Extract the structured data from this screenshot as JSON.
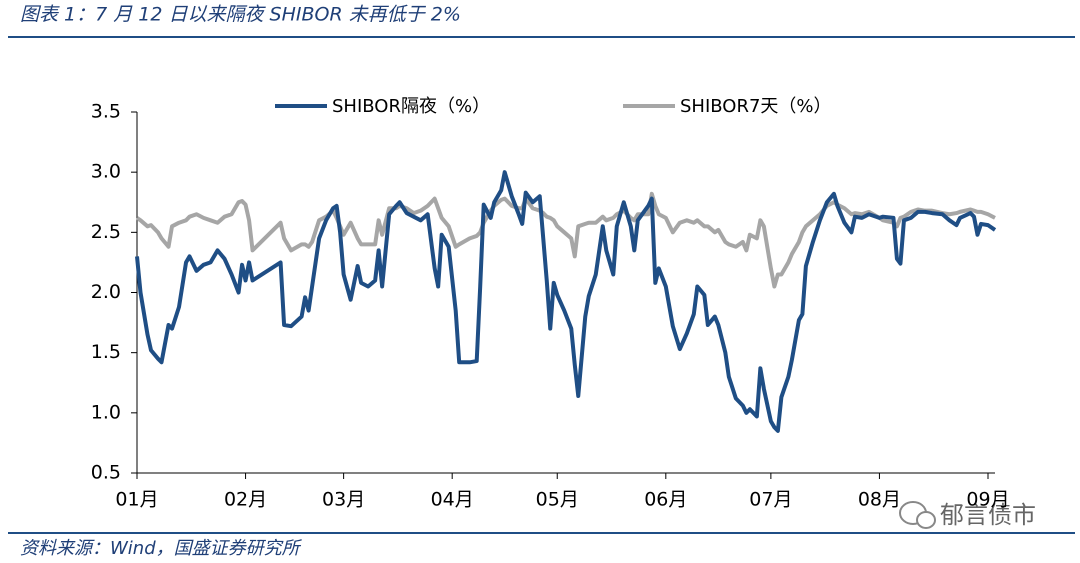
{
  "chart_data": {
    "type": "line",
    "title": "图表 1：7 月 12 日以来隔夜 SHIBOR 未再低于 2%",
    "source": "资料来源：Wind，国盛证券研究所",
    "watermark": "郁言债市",
    "x": [
      0,
      1,
      3,
      4,
      6,
      7,
      9,
      10,
      12,
      14,
      15,
      17,
      19,
      21,
      23,
      25,
      27,
      29,
      30,
      31,
      32,
      33,
      41,
      42,
      44,
      47,
      48,
      49,
      50,
      52,
      54,
      56,
      57,
      58,
      59,
      61,
      63,
      64,
      66,
      68,
      69,
      70,
      72,
      74,
      75,
      77,
      79,
      81,
      83,
      85,
      86,
      87,
      89,
      91,
      92,
      95,
      97,
      98,
      99,
      101,
      102,
      104,
      105,
      107,
      109,
      110,
      111,
      113,
      115,
      116,
      117,
      118,
      119,
      120,
      122,
      124,
      125,
      126,
      128,
      129,
      131,
      133,
      134,
      136,
      137,
      139,
      141,
      142,
      143,
      146,
      147,
      148,
      149,
      151,
      153,
      155,
      157,
      159,
      160,
      162,
      163,
      165,
      166,
      168,
      169,
      171,
      173,
      174,
      175,
      177,
      178,
      179,
      181,
      182,
      183,
      184,
      186,
      187,
      189,
      190,
      191,
      193,
      195,
      197,
      199,
      200,
      202,
      204,
      205,
      207,
      209,
      212,
      213,
      216,
      217,
      218,
      219,
      221,
      223,
      225,
      227,
      230,
      232,
      234,
      235,
      238,
      239,
      240,
      241,
      243,
      245
    ],
    "series": [
      {
        "name": "SHIBOR隔夜（%）",
        "color": "#1f4e85",
        "width": 4,
        "values": [
          2.3,
          2.0,
          1.65,
          1.52,
          1.45,
          1.42,
          1.73,
          1.7,
          1.88,
          2.25,
          2.3,
          2.18,
          2.23,
          2.25,
          2.35,
          2.28,
          2.15,
          2.0,
          2.23,
          2.1,
          2.25,
          2.1,
          2.25,
          1.73,
          1.72,
          1.8,
          1.96,
          1.85,
          2.05,
          2.45,
          2.6,
          2.7,
          2.72,
          2.5,
          2.15,
          1.94,
          2.22,
          2.08,
          2.05,
          2.1,
          2.35,
          2.05,
          2.65,
          2.72,
          2.75,
          2.66,
          2.63,
          2.6,
          2.65,
          2.2,
          2.05,
          2.48,
          2.38,
          1.85,
          1.42,
          1.42,
          1.43,
          2.05,
          2.73,
          2.62,
          2.75,
          2.85,
          3.0,
          2.8,
          2.65,
          2.57,
          2.83,
          2.75,
          2.8,
          2.45,
          2.1,
          1.7,
          2.08,
          1.98,
          1.85,
          1.7,
          1.4,
          1.14,
          1.8,
          1.97,
          2.15,
          2.55,
          2.35,
          2.15,
          2.55,
          2.75,
          2.55,
          2.35,
          2.6,
          2.72,
          2.78,
          2.08,
          2.2,
          2.05,
          1.72,
          1.53,
          1.66,
          1.82,
          2.05,
          1.98,
          1.73,
          1.8,
          1.73,
          1.5,
          1.3,
          1.12,
          1.06,
          1.0,
          1.03,
          0.97,
          1.37,
          1.2,
          0.93,
          0.88,
          0.85,
          1.13,
          1.3,
          1.44,
          1.77,
          1.82,
          2.22,
          2.42,
          2.6,
          2.75,
          2.82,
          2.72,
          2.58,
          2.5,
          2.63,
          2.62,
          2.65,
          2.62,
          2.63,
          2.62,
          2.28,
          2.24,
          2.6,
          2.62,
          2.67,
          2.67,
          2.66,
          2.65,
          2.6,
          2.56,
          2.62,
          2.66,
          2.63,
          2.48,
          2.57,
          2.56,
          2.52
        ]
      },
      {
        "name": "SHIBOR7天（%）",
        "color": "#a6a6a6",
        "width": 4,
        "values": [
          2.62,
          2.6,
          2.55,
          2.56,
          2.5,
          2.45,
          2.38,
          2.55,
          2.58,
          2.6,
          2.63,
          2.65,
          2.62,
          2.6,
          2.58,
          2.63,
          2.65,
          2.75,
          2.76,
          2.73,
          2.6,
          2.35,
          2.58,
          2.45,
          2.35,
          2.4,
          2.4,
          2.38,
          2.42,
          2.6,
          2.63,
          2.68,
          2.62,
          2.55,
          2.48,
          2.58,
          2.45,
          2.4,
          2.4,
          2.4,
          2.6,
          2.48,
          2.7,
          2.7,
          2.72,
          2.7,
          2.66,
          2.68,
          2.72,
          2.78,
          2.7,
          2.62,
          2.55,
          2.38,
          2.4,
          2.45,
          2.47,
          2.5,
          2.58,
          2.68,
          2.72,
          2.77,
          2.78,
          2.72,
          2.7,
          2.7,
          2.78,
          2.7,
          2.68,
          2.66,
          2.63,
          2.62,
          2.6,
          2.55,
          2.5,
          2.45,
          2.3,
          2.55,
          2.57,
          2.58,
          2.58,
          2.63,
          2.6,
          2.62,
          2.65,
          2.68,
          2.62,
          2.6,
          2.65,
          2.65,
          2.82,
          2.72,
          2.65,
          2.62,
          2.5,
          2.58,
          2.6,
          2.58,
          2.6,
          2.55,
          2.55,
          2.5,
          2.52,
          2.42,
          2.4,
          2.38,
          2.42,
          2.35,
          2.48,
          2.45,
          2.6,
          2.55,
          2.2,
          2.05,
          2.15,
          2.15,
          2.25,
          2.32,
          2.42,
          2.5,
          2.55,
          2.6,
          2.65,
          2.72,
          2.75,
          2.73,
          2.7,
          2.65,
          2.66,
          2.65,
          2.67,
          2.62,
          2.6,
          2.58,
          2.55,
          2.62,
          2.63,
          2.67,
          2.69,
          2.68,
          2.68,
          2.66,
          2.65,
          2.66,
          2.67,
          2.69,
          2.68,
          2.67,
          2.67,
          2.65,
          2.62
        ]
      }
    ],
    "xlim": [
      0,
      245
    ],
    "xticks": [
      {
        "value": 0,
        "label": "01月"
      },
      {
        "value": 31,
        "label": "02月"
      },
      {
        "value": 59,
        "label": "03月"
      },
      {
        "value": 90,
        "label": "04月"
      },
      {
        "value": 120,
        "label": "05月"
      },
      {
        "value": 151,
        "label": "06月"
      },
      {
        "value": 181,
        "label": "07月"
      },
      {
        "value": 212,
        "label": "08月"
      },
      {
        "value": 243,
        "label": "09月"
      }
    ],
    "ylim": [
      0.5,
      3.5
    ],
    "yticks": [
      0.5,
      {
        "value": 1,
        "label": "1.0"
      },
      1.5,
      {
        "value": 2,
        "label": "2.0"
      },
      2.5,
      {
        "value": 3,
        "label": "3.0"
      },
      3.5
    ],
    "grid": false
  }
}
